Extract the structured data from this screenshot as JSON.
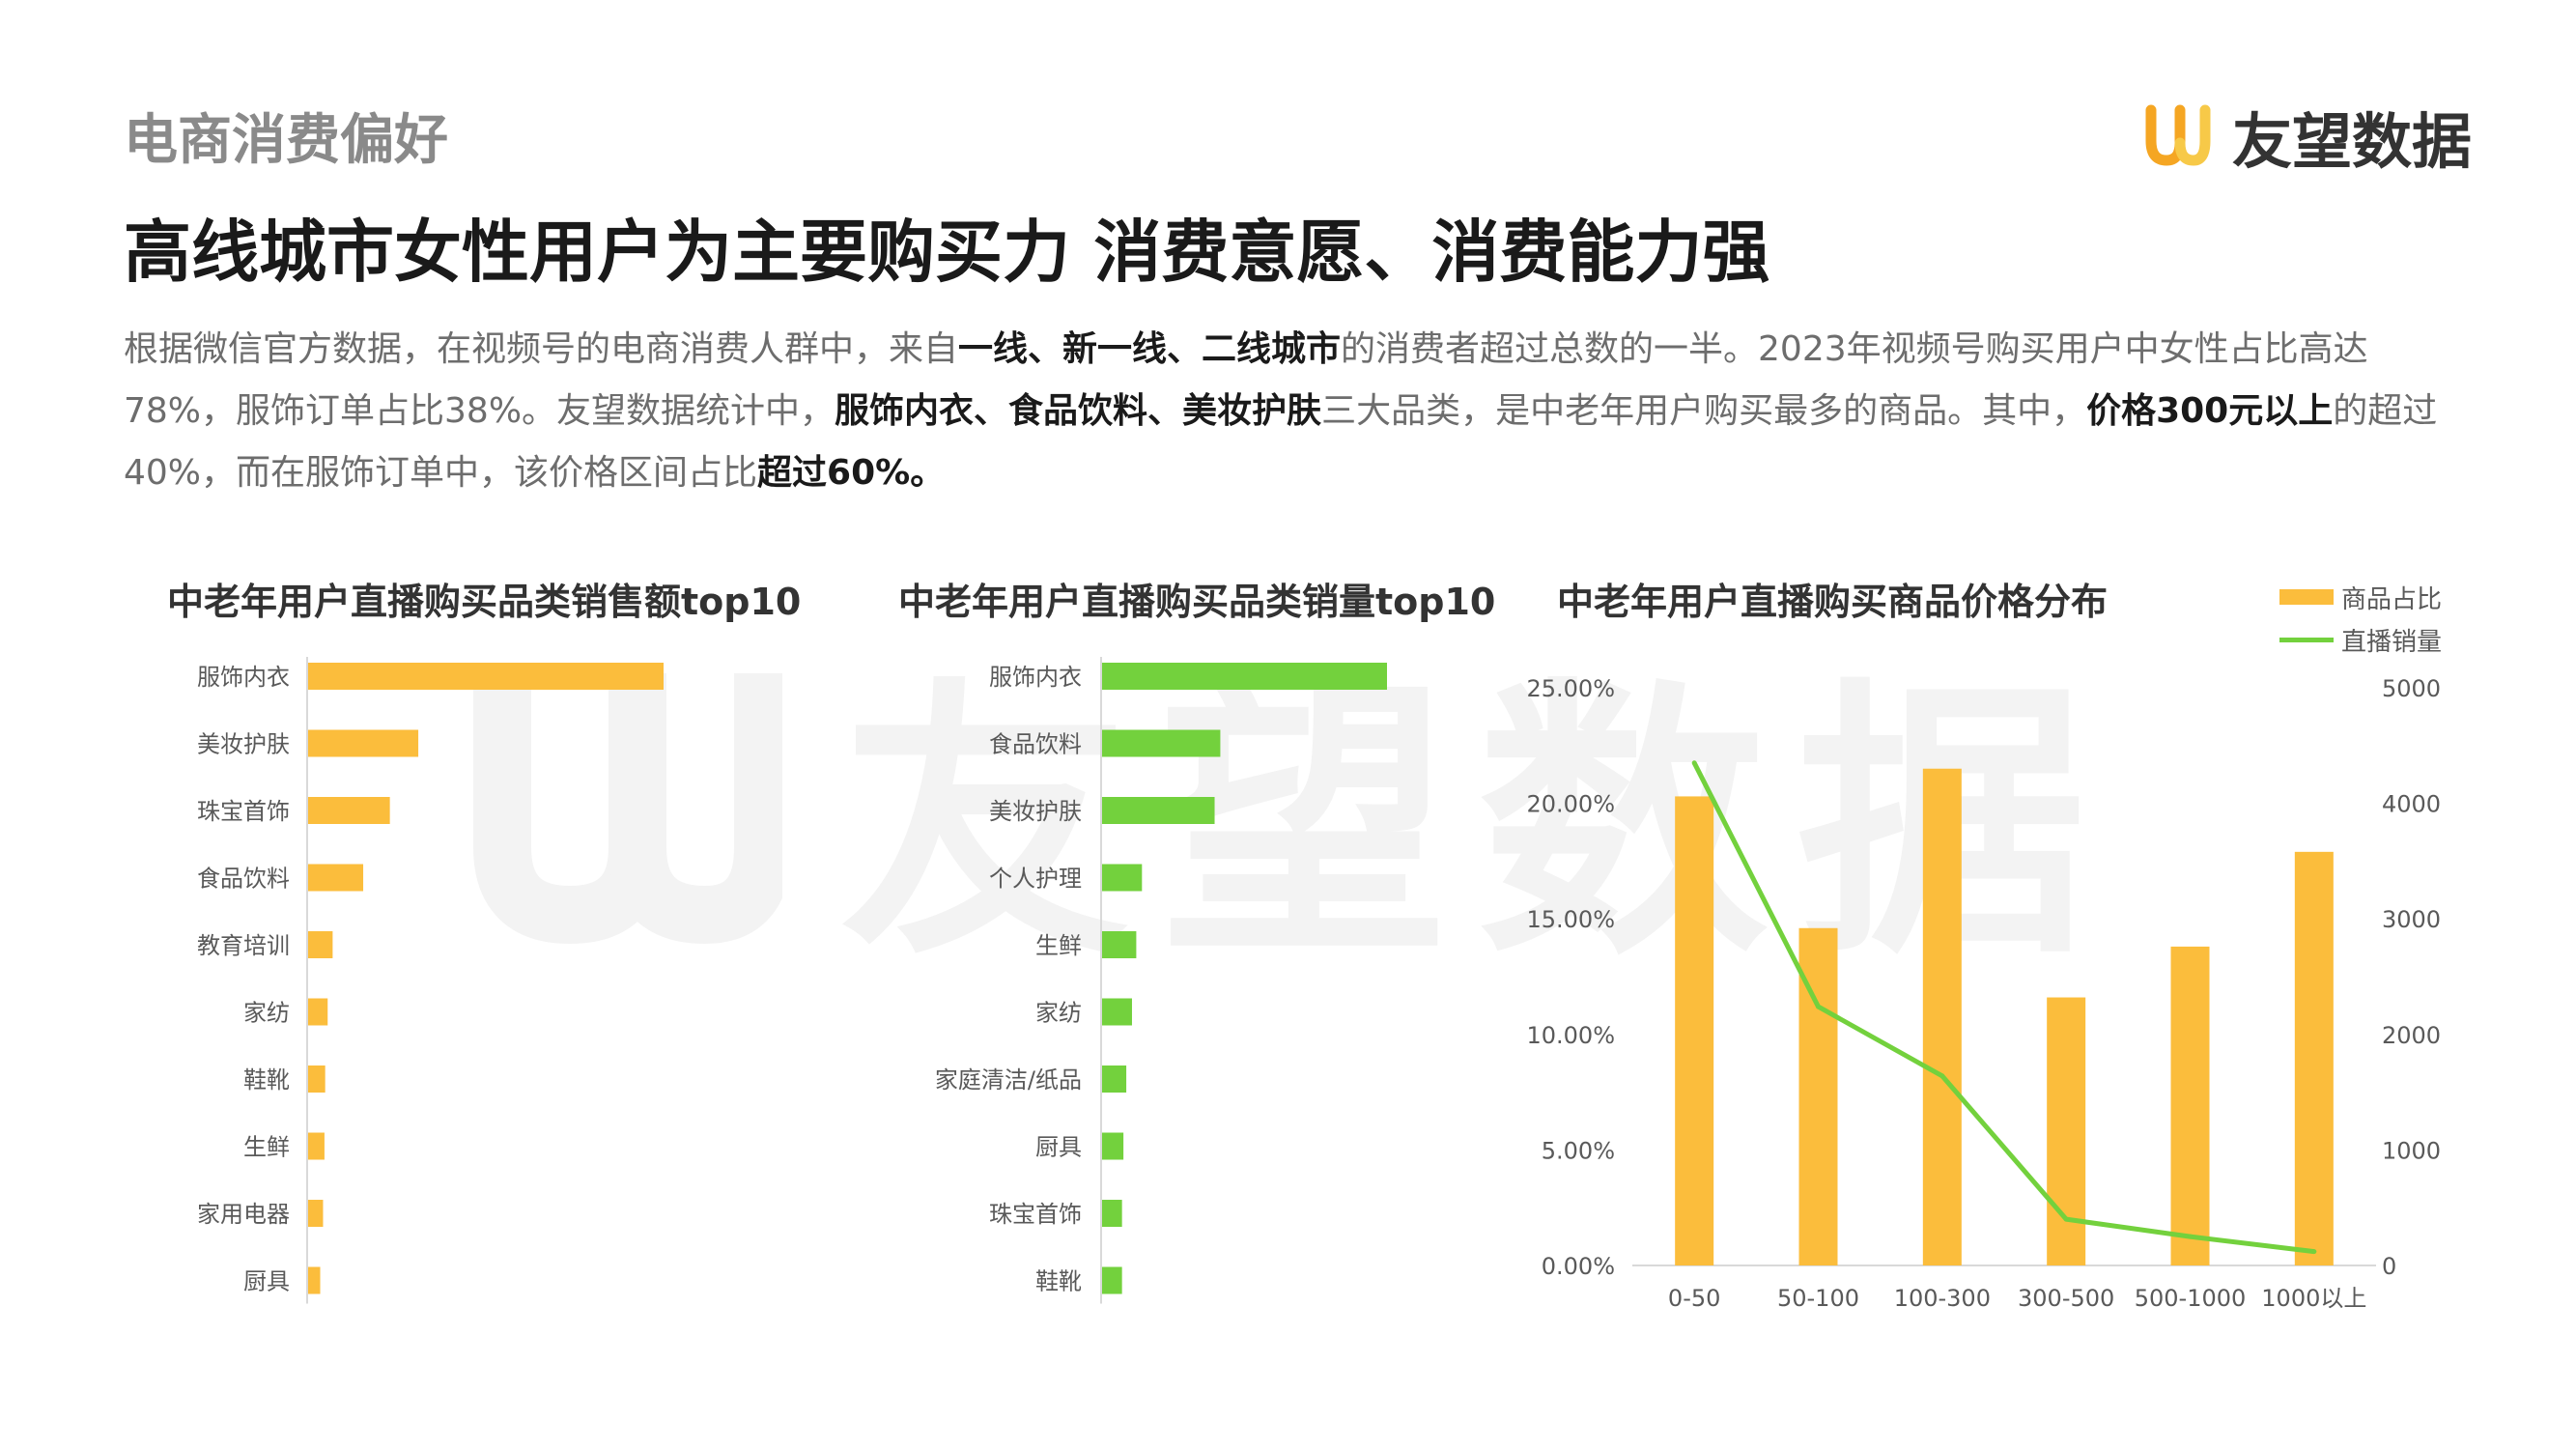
{
  "header": {
    "section_label": "电商消费偏好",
    "brand_name": "友望数据",
    "headline": "高线城市女性用户为主要购买力 消费意愿、消费能力强"
  },
  "intro": {
    "p1": "根据微信官方数据，在视频号的电商消费人群中，来自",
    "e1": "一线、新一线、二线城市",
    "p2": "的消费者超过总数的一半。2023年视频号购买用户中女性占比高达78%，服饰订单占比38%。友望数据统计中，",
    "e2": "服饰内衣、食品饮料、美妆护肤",
    "p3": "三大品类，是中老年用户购买最多的商品。其中，",
    "e3": "价格300元以上",
    "p4": "的超过40%，而在服饰订单中，该价格区间占比",
    "e4": "超过60%。"
  },
  "watermark": {
    "text": "友望数据"
  },
  "colors": {
    "orange": "#fbbd3c",
    "green": "#73d13d",
    "axis": "#d9d9d9"
  },
  "chart_data": [
    {
      "type": "bar",
      "orientation": "horizontal",
      "title": "中老年用户直播购买品类销售额top10",
      "categories": [
        "服饰内衣",
        "美妆护肤",
        "珠宝首饰",
        "食品饮料",
        "教育培训",
        "家纺",
        "鞋靴",
        "生鲜",
        "家用电器",
        "厨具"
      ],
      "values": [
        100,
        31,
        23,
        15.5,
        6.9,
        5.5,
        4.8,
        4.6,
        4.2,
        3.4
      ],
      "color": "#fbbd3c"
    },
    {
      "type": "bar",
      "orientation": "horizontal",
      "title": "中老年用户直播购买品类销量top10",
      "categories": [
        "服饰内衣",
        "食品饮料",
        "美妆护肤",
        "个人护理",
        "生鲜",
        "家纺",
        "家庭清洁/纸品",
        "厨具",
        "珠宝首饰",
        "鞋靴"
      ],
      "values": [
        100,
        41.5,
        39.5,
        14,
        12,
        10.5,
        8.5,
        7.5,
        7,
        7
      ],
      "color": "#73d13d"
    },
    {
      "type": "bar+line",
      "title": "中老年用户直播购买商品价格分布",
      "categories": [
        "0-50",
        "50-100",
        "100-300",
        "300-500",
        "500-1000",
        "1000以上"
      ],
      "series": [
        {
          "name": "商品占比",
          "type": "bar",
          "axis": "left",
          "values": [
            20.3,
            14.6,
            21.5,
            11.6,
            13.8,
            17.9
          ],
          "color": "#fbbd3c"
        },
        {
          "name": "直播销量",
          "type": "line",
          "axis": "right",
          "values": [
            4350,
            2240,
            1640,
            400,
            250,
            120
          ],
          "color": "#73d13d"
        }
      ],
      "y_left": {
        "range": [
          0,
          25
        ],
        "ticks": [
          "0.00%",
          "5.00%",
          "10.00%",
          "15.00%",
          "20.00%",
          "25.00%"
        ]
      },
      "y_right": {
        "range": [
          0,
          5000
        ],
        "ticks": [
          "0",
          "1000",
          "2000",
          "3000",
          "4000",
          "5000"
        ]
      }
    }
  ]
}
